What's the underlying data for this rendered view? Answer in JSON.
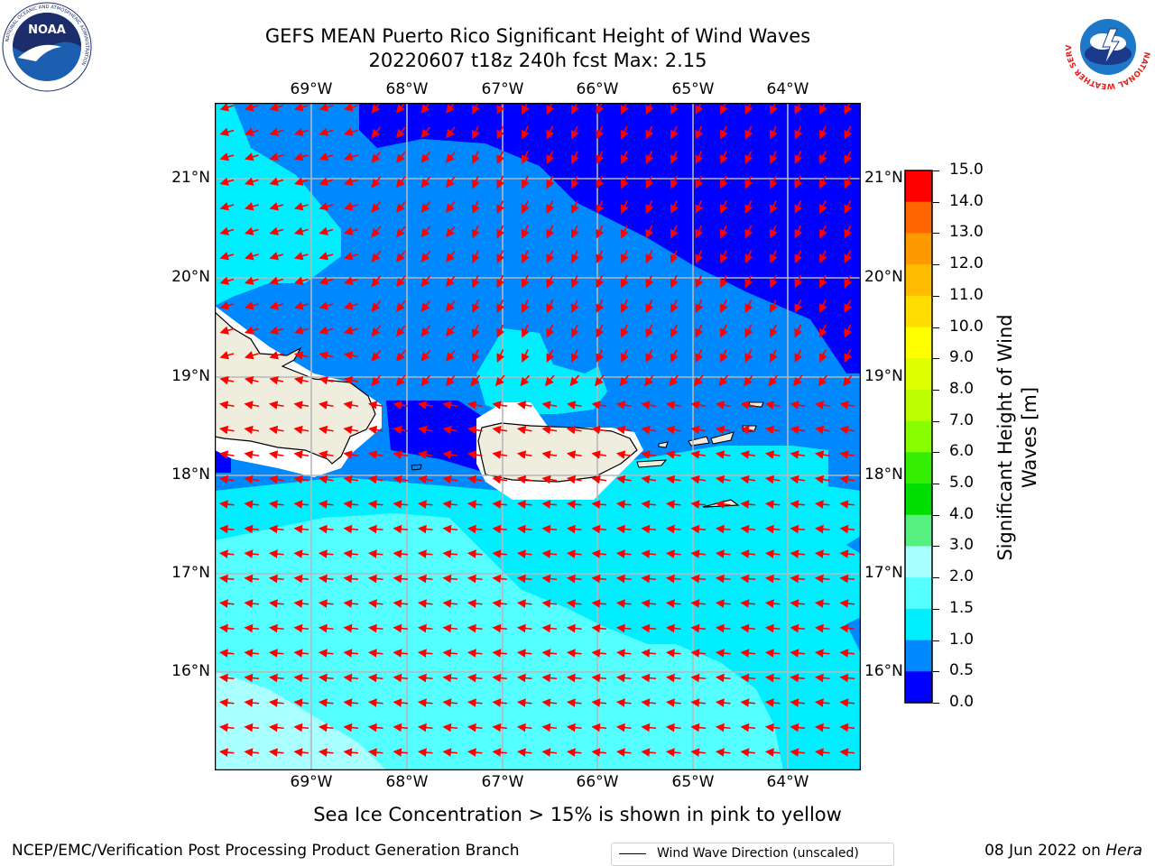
{
  "title": {
    "line1": "GEFS MEAN Puerto Rico Significant Height of Wind Waves",
    "line2": "20220607 t18z 240h fcst   Max: 2.15"
  },
  "map": {
    "lon_labels": [
      "69°W",
      "68°W",
      "67°W",
      "66°W",
      "65°W",
      "64°W"
    ],
    "lat_labels": [
      "21°N",
      "20°N",
      "19°N",
      "18°N",
      "17°N",
      "16°N"
    ],
    "legend_label": "Wind Wave Direction (unscaled)",
    "arrow_color": "#ff0000",
    "land_color": "#efedde",
    "coast_color": "#000000"
  },
  "colorbar": {
    "title": "Significant Height of Wind Waves [m]",
    "ticks": [
      "15.0",
      "14.0",
      "13.0",
      "12.0",
      "11.0",
      "10.0",
      "9.0",
      "8.0",
      "7.0",
      "6.0",
      "5.0",
      "4.0",
      "3.0",
      "2.0",
      "1.5",
      "1.0",
      "0.5",
      "0.0"
    ],
    "colors_top_to_bottom": [
      "#ff0000",
      "#ff3300",
      "#ff6600",
      "#ff9900",
      "#ffbb00",
      "#ffdd00",
      "#ffff00",
      "#ddff00",
      "#bbff00",
      "#88ff00",
      "#33ee00",
      "#00dd00",
      "#55f07f",
      "#aaffff",
      "#55ffff",
      "#00eeff",
      "#0088ff",
      "#0000ff"
    ]
  },
  "footer": {
    "ice_note": "Sea Ice Concentration > 15% is shown in pink to yellow",
    "left": "NCEP/EMC/Verification Post Processing Product Generation Branch",
    "right_date": "08 Jun 2022 on ",
    "right_host": "Hera"
  },
  "logos": {
    "noaa": "NOAA",
    "nws_ring": "NATIONAL WEATHER SERVICE",
    "noaa_ring": "NATIONAL OCEANIC AND ATMOSPHERIC ADMINISTRATION"
  }
}
